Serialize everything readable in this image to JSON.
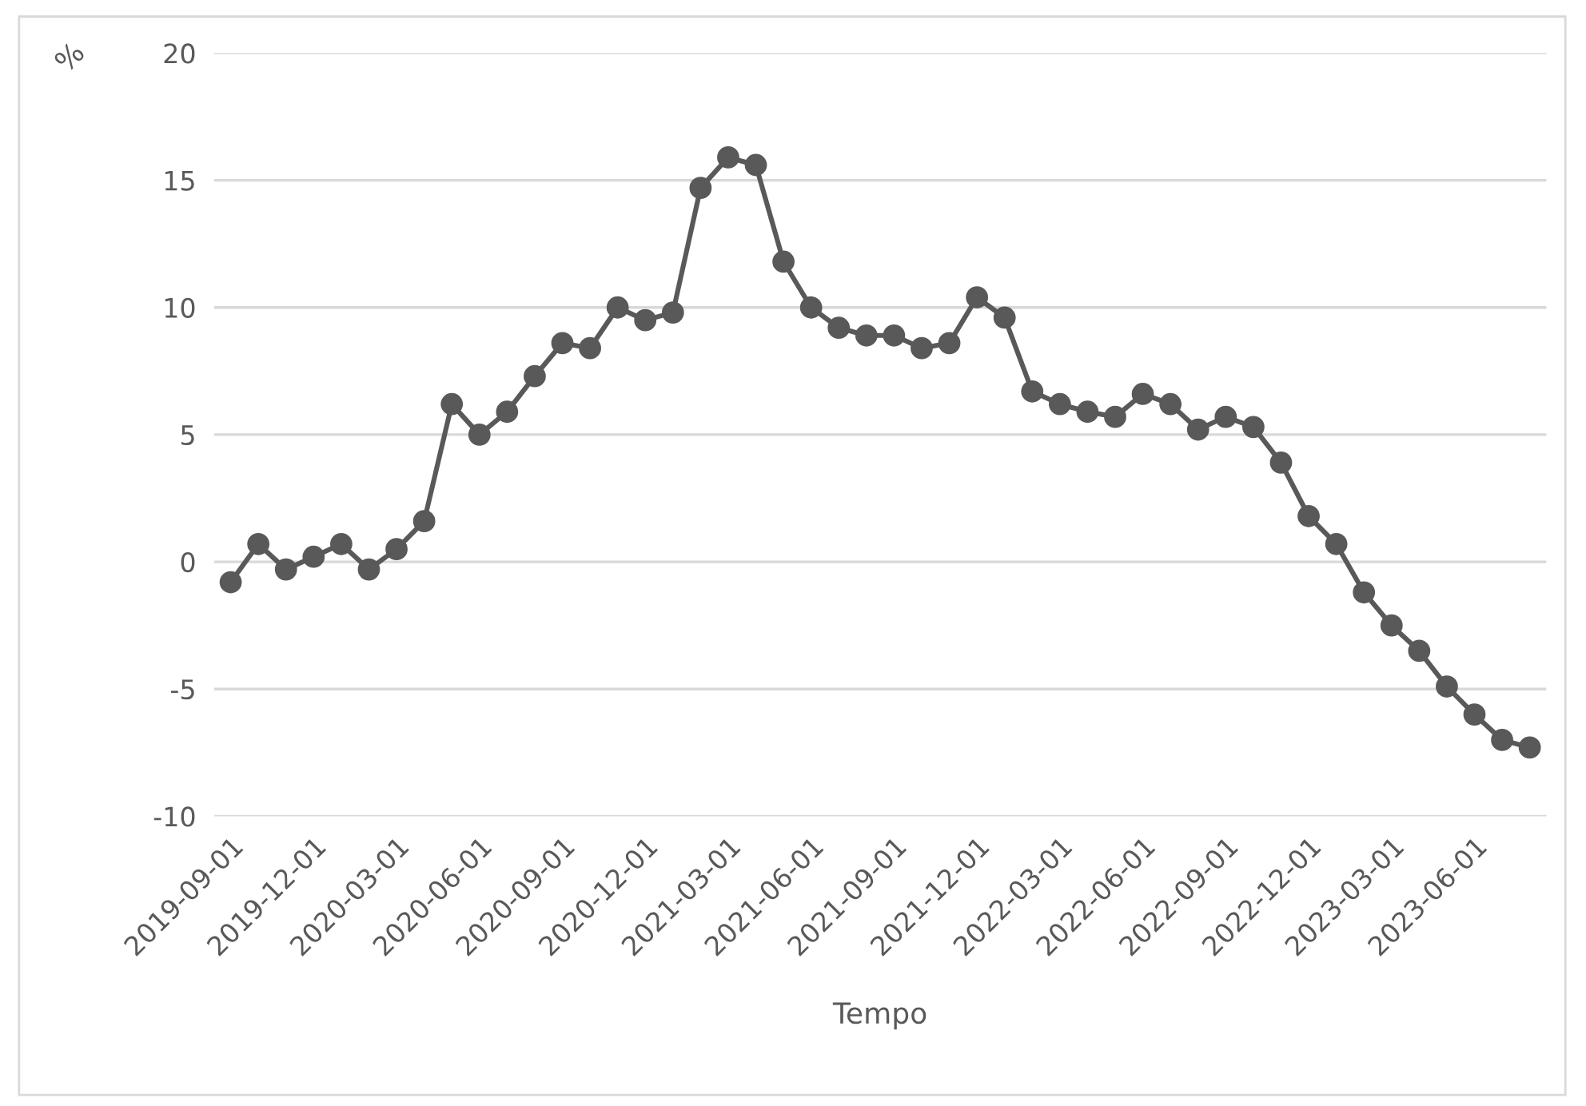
{
  "chart_data": {
    "type": "line",
    "ylabel": "%",
    "xlabel": "Tempo",
    "categories": [
      "2019-09-01",
      null,
      null,
      "2019-12-01",
      null,
      null,
      "2020-03-01",
      null,
      null,
      "2020-06-01",
      null,
      null,
      "2020-09-01",
      null,
      null,
      "2020-12-01",
      null,
      null,
      "2021-03-01",
      null,
      null,
      "2021-06-01",
      null,
      null,
      "2021-09-01",
      null,
      null,
      "2021-12-01",
      null,
      null,
      "2022-03-01",
      null,
      null,
      "2022-06-01",
      null,
      null,
      "2022-09-01",
      null,
      null,
      "2022-12-01",
      null,
      null,
      "2023-03-01",
      null,
      null,
      "2023-06-01",
      null,
      null
    ],
    "series": [
      {
        "color": "#595959",
        "values": [
          -0.8,
          0.7,
          -0.3,
          0.2,
          0.7,
          -0.3,
          0.5,
          1.6,
          6.2,
          5.0,
          5.9,
          7.3,
          8.6,
          8.4,
          10.0,
          9.5,
          9.8,
          14.7,
          15.9,
          15.6,
          11.8,
          10.0,
          9.2,
          8.9,
          8.9,
          8.4,
          8.6,
          10.4,
          9.6,
          6.7,
          6.2,
          5.9,
          5.7,
          6.6,
          6.2,
          5.2,
          5.7,
          5.3,
          3.9,
          1.8,
          0.7,
          -1.2,
          -2.5,
          -3.5,
          -4.9,
          -6.0,
          -7.0,
          -7.3
        ]
      }
    ],
    "ylim": [
      -10,
      20
    ],
    "yticks": [
      -10,
      -5,
      0,
      5,
      10,
      15,
      20
    ],
    "grid": "y",
    "marker": "circle",
    "line_style": "solid"
  }
}
